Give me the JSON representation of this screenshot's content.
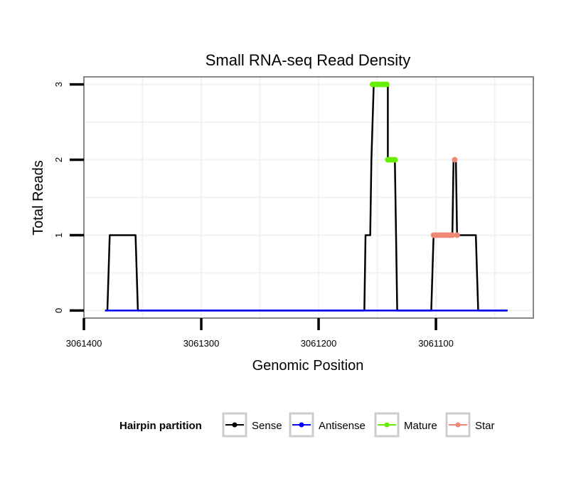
{
  "chart_data": {
    "type": "line",
    "title": "Small RNA-seq Read Density",
    "xlabel": "Genomic Position",
    "ylabel": "Total Reads",
    "x_reversed": true,
    "xlim": [
      3061400,
      3061017
    ],
    "ylim": [
      -0.1,
      3.1
    ],
    "x_ticks": [
      3061400,
      3061300,
      3061200,
      3061100
    ],
    "x_tick_labels": [
      "3061400",
      "3061300",
      "3061200",
      "3061100"
    ],
    "y_ticks": [
      0,
      1,
      2,
      3
    ],
    "y_tick_labels": [
      "0",
      "1",
      "2",
      "3"
    ],
    "grid": true,
    "legend": {
      "title": "Hairpin partition",
      "position": "bottom",
      "entries": [
        {
          "name": "Sense",
          "color": "#000000"
        },
        {
          "name": "Antisense",
          "color": "#0000ff"
        },
        {
          "name": "Mature",
          "color": "#66ee00"
        },
        {
          "name": "Star",
          "color": "#f08878"
        }
      ]
    },
    "series": [
      {
        "name": "Sense",
        "color": "#000000",
        "x": [
          3061382,
          3061380,
          3061378,
          3061356,
          3061354,
          3061161,
          3061160,
          3061156,
          3061155,
          3061153,
          3061141,
          3061141,
          3061136,
          3061135,
          3061133,
          3061104,
          3061102,
          3061093,
          3061087,
          3061086,
          3061085,
          3061083,
          3061082,
          3061080,
          3061066,
          3061064,
          3061039
        ],
        "y": [
          0,
          0,
          1,
          1,
          0,
          0,
          1,
          1,
          2,
          3,
          3,
          2,
          2,
          2,
          0,
          0,
          1,
          1,
          1,
          1,
          2,
          2,
          1,
          1,
          1,
          0,
          0
        ]
      },
      {
        "name": "Antisense",
        "color": "#0000ff",
        "x": [
          3061382,
          3061039
        ],
        "y": [
          0,
          0
        ]
      },
      {
        "name": "Mature",
        "color": "#66ee00",
        "x": [
          3061154,
          3061152,
          3061150,
          3061148,
          3061146,
          3061144,
          3061142,
          3061141,
          3061139,
          3061137,
          3061135
        ],
        "y": [
          3,
          3,
          3,
          3,
          3,
          3,
          3,
          2,
          2,
          2,
          2
        ]
      },
      {
        "name": "Star",
        "color": "#f08878",
        "x": [
          3061102,
          3061100,
          3061098,
          3061096,
          3061094,
          3061092,
          3061090,
          3061088,
          3061086,
          3061084,
          3061082
        ],
        "y": [
          1,
          1,
          1,
          1,
          1,
          1,
          1,
          1,
          1,
          2,
          1
        ]
      }
    ]
  }
}
